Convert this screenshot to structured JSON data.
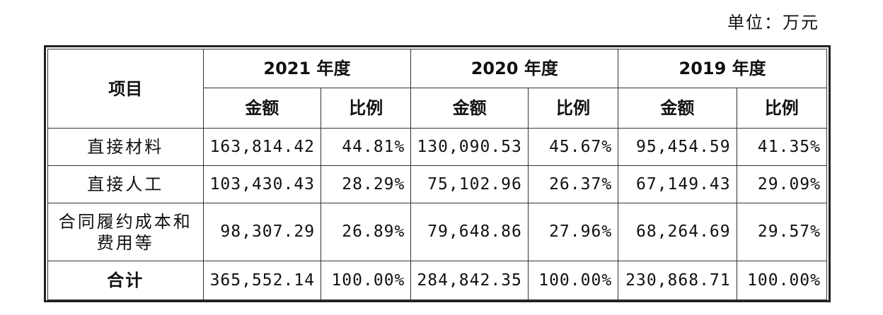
{
  "unit": "单位：万元",
  "header": {
    "item": "项目",
    "years": [
      "2021 年度",
      "2020 年度",
      "2019 年度"
    ],
    "amount": "金额",
    "ratio": "比例"
  },
  "rows": [
    {
      "label": "直接材料",
      "values": [
        "163,814.42",
        "44.81%",
        "130,090.53",
        "45.67%",
        "95,454.59",
        "41.35%"
      ]
    },
    {
      "label": "直接人工",
      "values": [
        "103,430.43",
        "28.29%",
        "75,102.96",
        "26.37%",
        "67,149.43",
        "29.09%"
      ]
    },
    {
      "label": "合同履约成本和费用等",
      "values": [
        "98,307.29",
        "26.89%",
        "79,648.86",
        "27.96%",
        "68,264.69",
        "29.57%"
      ]
    }
  ],
  "total": {
    "label": "合计",
    "values": [
      "365,552.14",
      "100.00%",
      "284,842.35",
      "100.00%",
      "230,868.71",
      "100.00%"
    ]
  }
}
